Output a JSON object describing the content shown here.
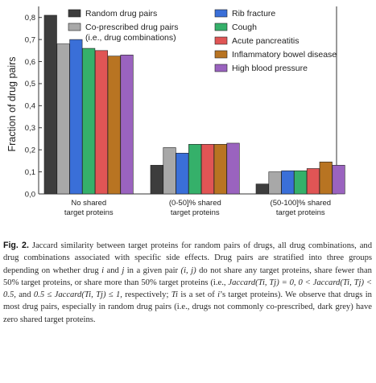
{
  "chart_data": {
    "type": "bar",
    "ylabel": "Fraction of drug pairs",
    "ylim": [
      0,
      0.85
    ],
    "yticks": [
      "0,0",
      "0,1",
      "0,2",
      "0,3",
      "0,4",
      "0,5",
      "0,6",
      "0,7",
      "0,8"
    ],
    "ytick_values": [
      0,
      0.1,
      0.2,
      0.3,
      0.4,
      0.5,
      0.6,
      0.7,
      0.8
    ],
    "categories": [
      [
        "No shared",
        "target proteins"
      ],
      [
        "(0-50]% shared",
        "target proteins"
      ],
      [
        "(50-100]% shared",
        "target proteins"
      ]
    ],
    "legend_placement": "top",
    "series": [
      {
        "name": "Random drug pairs",
        "color": "#3d3d3d",
        "values": [
          0.81,
          0.13,
          0.045
        ]
      },
      {
        "name": "Co-prescribed drug pairs",
        "name_line2": "(i.e., drug combinations)",
        "color": "#a8a8a8",
        "values": [
          0.68,
          0.21,
          0.1
        ]
      },
      {
        "name": "Rib fracture",
        "color": "#3a6fd8",
        "values": [
          0.7,
          0.185,
          0.105
        ]
      },
      {
        "name": "Cough",
        "color": "#35b06a",
        "values": [
          0.66,
          0.225,
          0.105
        ]
      },
      {
        "name": "Acute pancreatitis",
        "color": "#e05555",
        "values": [
          0.65,
          0.225,
          0.115
        ]
      },
      {
        "name": "Inflammatory bowel disease",
        "color": "#b87422",
        "values": [
          0.625,
          0.225,
          0.145
        ]
      },
      {
        "name": "High blood pressure",
        "color": "#9a63bf",
        "values": [
          0.63,
          0.23,
          0.13
        ]
      }
    ]
  },
  "caption": {
    "label": "Fig. 2.",
    "p1": "Jaccard similarity between target proteins for random pairs of drugs, all drug combinations, and drug combinations associated with specific side effects. Drug pairs are stratified into three groups depending on whether drug",
    "v_i": "i",
    "and": "and",
    "v_j": "j",
    "p2": "in a given pair",
    "pair": "(i, j)",
    "p3": "do not share any target proteins, share fewer than 50% target proteins, or share more than 50% target proteins (i.e.,",
    "m1": "Jaccard(Ti, Tj) = 0, 0 < Jaccard(Ti, Tj) < 0.5,",
    "and2": "and",
    "m2": "0.5 ≤ Jaccard(Ti, Tj) ≤ 1,",
    "p4": "respectively;",
    "m3": "Ti",
    "p5": "is a set of",
    "m4": "i",
    "p6": "’s target proteins). We observe that drugs in most drug pairs, especially in random drug pairs (i.e., drugs not commonly co-prescribed, dark grey) have zero shared target proteins."
  }
}
